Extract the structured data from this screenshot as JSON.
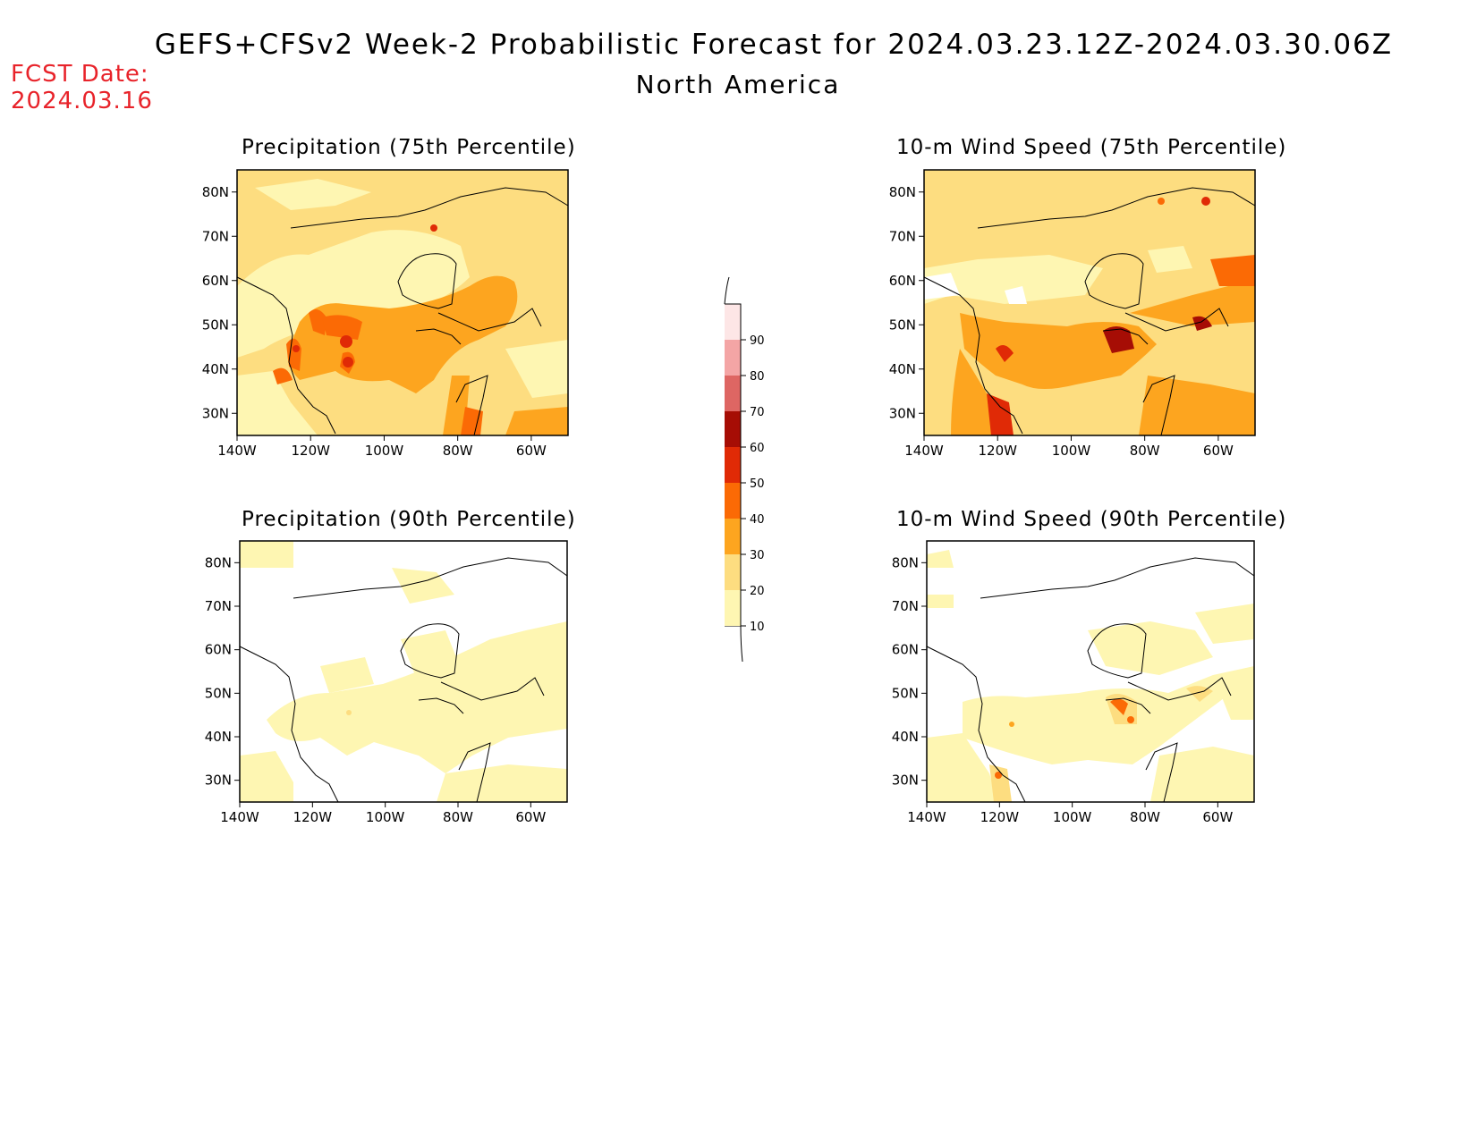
{
  "header": {
    "title": "GEFS+CFSv2 Week-2 Probabilistic Forecast for 2024.03.23.12Z-2024.03.30.06Z",
    "region": "North America",
    "fcst_label": "FCST Date:",
    "fcst_date": "2024.03.16"
  },
  "colors": {
    "c10": "#fef6b2",
    "c20": "#fddd80",
    "c30": "#fda51f",
    "c40": "#fb6a05",
    "c50": "#e02a06",
    "c60": "#a60d05",
    "c70": "#de6663",
    "c80": "#f4a5a5",
    "c90": "#fde6e6"
  },
  "axes": {
    "lon_labels": [
      "140W",
      "120W",
      "100W",
      "80W",
      "60W"
    ],
    "lat_labels": [
      "80N",
      "70N",
      "60N",
      "50N",
      "40N",
      "30N"
    ]
  },
  "colorbar": {
    "levels": [
      "10",
      "20",
      "30",
      "40",
      "50",
      "60",
      "70",
      "80",
      "90"
    ]
  },
  "panels": [
    {
      "title": "Precipitation (75th Percentile)",
      "base_level": "c20"
    },
    {
      "title": "10-m Wind Speed (75th Percentile)",
      "base_level": "c20"
    },
    {
      "title": "Precipitation (90th Percentile)",
      "base_level": "none"
    },
    {
      "title": "10-m Wind Speed (90th Percentile)",
      "base_level": "none"
    }
  ]
}
